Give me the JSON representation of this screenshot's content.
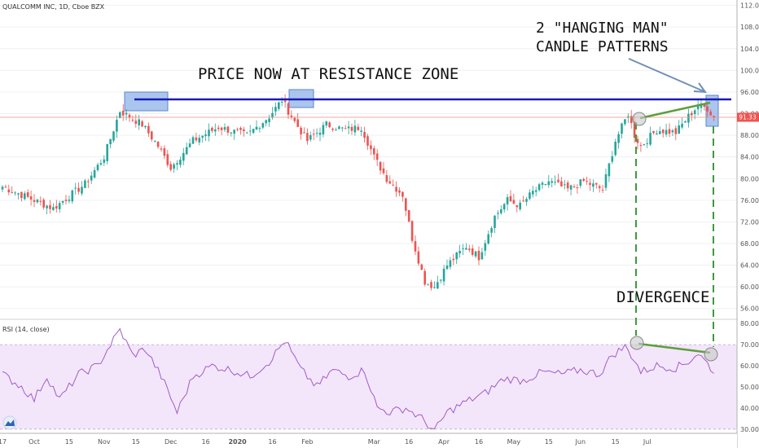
{
  "header": {
    "symbol_title": "QUALCOMM INC, 1D, Cboe BZX"
  },
  "rsi_header": {
    "label": "RSI (14, close)"
  },
  "current_price_label": "91.33",
  "annotations": {
    "resistance": "PRICE NOW AT RESISTANCE ZONE",
    "hanging_man_line1": "2 \"HANGING MAN\"",
    "hanging_man_line2": "CANDLE PATTERNS",
    "divergence": "DIVERGENCE"
  },
  "colors": {
    "up": "#26a69a",
    "down": "#ef5350",
    "resistance_line": "#1a1ab8",
    "trend_line": "#5d9e3b",
    "rsi_line": "#a25bc7",
    "rsi_band": "#f3e6fb",
    "zone_box": "#8fb3e8",
    "price_line": "#f28b82",
    "price_tag": "#ef5350"
  },
  "chart_data": [
    {
      "type": "candlestick",
      "title": "QUALCOMM INC, 1D, Cboe BZX",
      "y_ticks": [
        "56.00",
        "60.00",
        "64.00",
        "68.00",
        "72.00",
        "76.00",
        "80.00",
        "84.00",
        "88.00",
        "92.00",
        "96.00",
        "100.00",
        "104.00",
        "108.00",
        "112.00"
      ],
      "x_ticks": [
        "17",
        "Oct",
        "15",
        "Nov",
        "15",
        "Dec",
        "16",
        "2020",
        "16",
        "Feb",
        "Mar",
        "16",
        "Apr",
        "16",
        "May",
        "15",
        "Jun",
        "15",
        "Jul"
      ],
      "ylim": [
        54,
        113
      ],
      "last_price": 91.33,
      "resistance_level": 94.5,
      "anchors": [
        {
          "i": 0,
          "v": 78.5
        },
        {
          "i": 10,
          "v": 76.0
        },
        {
          "i": 16,
          "v": 74.5
        },
        {
          "i": 26,
          "v": 79.0
        },
        {
          "i": 32,
          "v": 84.0
        },
        {
          "i": 37,
          "v": 92.5
        },
        {
          "i": 44,
          "v": 90.0
        },
        {
          "i": 49,
          "v": 86.0
        },
        {
          "i": 53,
          "v": 82.0
        },
        {
          "i": 60,
          "v": 87.0
        },
        {
          "i": 68,
          "v": 89.5
        },
        {
          "i": 77,
          "v": 88.0
        },
        {
          "i": 84,
          "v": 91.5
        },
        {
          "i": 88,
          "v": 94.5
        },
        {
          "i": 92,
          "v": 90.5
        },
        {
          "i": 96,
          "v": 87.0
        },
        {
          "i": 102,
          "v": 90.0
        },
        {
          "i": 108,
          "v": 89.0
        },
        {
          "i": 113,
          "v": 89.5
        },
        {
          "i": 117,
          "v": 84.0
        },
        {
          "i": 121,
          "v": 80.0
        },
        {
          "i": 126,
          "v": 77.0
        },
        {
          "i": 129,
          "v": 69.0
        },
        {
          "i": 133,
          "v": 61.0
        },
        {
          "i": 136,
          "v": 60.0
        },
        {
          "i": 140,
          "v": 64.0
        },
        {
          "i": 146,
          "v": 67.5
        },
        {
          "i": 150,
          "v": 65.5
        },
        {
          "i": 155,
          "v": 73.0
        },
        {
          "i": 159,
          "v": 76.0
        },
        {
          "i": 163,
          "v": 75.0
        },
        {
          "i": 167,
          "v": 77.5
        },
        {
          "i": 172,
          "v": 79.5
        },
        {
          "i": 178,
          "v": 78.0
        },
        {
          "i": 183,
          "v": 79.5
        },
        {
          "i": 189,
          "v": 78.0
        },
        {
          "i": 193,
          "v": 87.0
        },
        {
          "i": 197,
          "v": 92.0
        },
        {
          "i": 199,
          "v": 88.0
        },
        {
          "i": 201,
          "v": 86.0
        },
        {
          "i": 206,
          "v": 89.0
        },
        {
          "i": 212,
          "v": 88.5
        },
        {
          "i": 216,
          "v": 91.5
        },
        {
          "i": 219,
          "v": 93.5
        },
        {
          "i": 222,
          "v": 93.0
        },
        {
          "i": 224,
          "v": 91.3
        }
      ]
    },
    {
      "type": "line",
      "title": "RSI (14, close)",
      "y_ticks": [
        "30.00",
        "40.00",
        "50.00",
        "60.00",
        "70.00",
        "80.00"
      ],
      "ylim": [
        28,
        82
      ],
      "band": [
        30,
        70
      ],
      "anchors": [
        {
          "i": 0,
          "v": 56
        },
        {
          "i": 6,
          "v": 50
        },
        {
          "i": 10,
          "v": 44
        },
        {
          "i": 14,
          "v": 55
        },
        {
          "i": 18,
          "v": 44
        },
        {
          "i": 24,
          "v": 56
        },
        {
          "i": 30,
          "v": 60
        },
        {
          "i": 34,
          "v": 70
        },
        {
          "i": 37,
          "v": 77
        },
        {
          "i": 41,
          "v": 65
        },
        {
          "i": 45,
          "v": 68
        },
        {
          "i": 50,
          "v": 55
        },
        {
          "i": 55,
          "v": 38
        },
        {
          "i": 60,
          "v": 55
        },
        {
          "i": 66,
          "v": 60
        },
        {
          "i": 72,
          "v": 58
        },
        {
          "i": 78,
          "v": 55
        },
        {
          "i": 84,
          "v": 62
        },
        {
          "i": 89,
          "v": 72
        },
        {
          "i": 94,
          "v": 58
        },
        {
          "i": 99,
          "v": 50
        },
        {
          "i": 104,
          "v": 58
        },
        {
          "i": 109,
          "v": 55
        },
        {
          "i": 114,
          "v": 58
        },
        {
          "i": 118,
          "v": 40
        },
        {
          "i": 122,
          "v": 38
        },
        {
          "i": 127,
          "v": 40
        },
        {
          "i": 132,
          "v": 35
        },
        {
          "i": 136,
          "v": 29
        },
        {
          "i": 140,
          "v": 38
        },
        {
          "i": 146,
          "v": 43
        },
        {
          "i": 152,
          "v": 47
        },
        {
          "i": 158,
          "v": 54
        },
        {
          "i": 164,
          "v": 53
        },
        {
          "i": 170,
          "v": 57
        },
        {
          "i": 176,
          "v": 56
        },
        {
          "i": 182,
          "v": 58
        },
        {
          "i": 188,
          "v": 56
        },
        {
          "i": 192,
          "v": 65
        },
        {
          "i": 196,
          "v": 69
        },
        {
          "i": 199,
          "v": 63
        },
        {
          "i": 201,
          "v": 57
        },
        {
          "i": 206,
          "v": 60
        },
        {
          "i": 212,
          "v": 59
        },
        {
          "i": 216,
          "v": 62
        },
        {
          "i": 219,
          "v": 66
        },
        {
          "i": 222,
          "v": 61
        },
        {
          "i": 224,
          "v": 57
        }
      ]
    }
  ]
}
